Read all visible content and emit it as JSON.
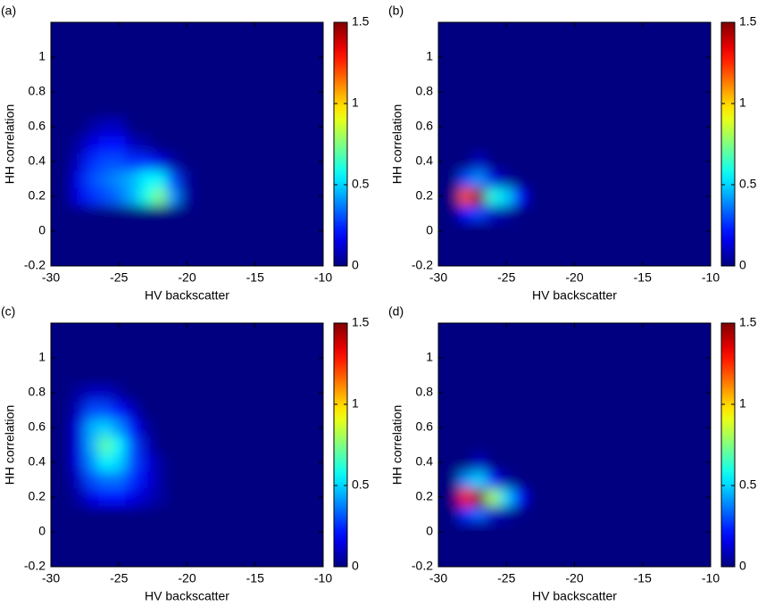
{
  "chart_data": [
    {
      "type": "contour",
      "label": "(a)",
      "xlabel": "HV backscatter",
      "ylabel": "HH correlation",
      "colormap": "jet",
      "x": [
        -30,
        -29,
        -28,
        -27,
        -26,
        -25,
        -24,
        -23,
        -22,
        -21,
        -20
      ],
      "y": [
        0.1,
        0.2,
        0.3,
        0.4,
        0.5,
        0.6,
        0.7,
        0.8
      ],
      "z": [
        [
          0,
          0,
          0,
          0,
          0,
          0,
          0,
          0,
          0,
          0,
          0
        ],
        [
          0,
          0,
          0.15,
          0.25,
          0.3,
          0.35,
          0.45,
          0.6,
          0.75,
          0.4,
          0.05
        ],
        [
          0,
          0,
          0.15,
          0.3,
          0.35,
          0.4,
          0.45,
          0.55,
          0.55,
          0.3,
          0.05
        ],
        [
          0,
          0,
          0.1,
          0.25,
          0.3,
          0.3,
          0.25,
          0.25,
          0.15,
          0.05,
          0
        ],
        [
          0,
          0,
          0.05,
          0.15,
          0.2,
          0.2,
          0.1,
          0.05,
          0,
          0,
          0
        ],
        [
          0,
          0,
          0,
          0.05,
          0.1,
          0.1,
          0,
          0,
          0,
          0,
          0
        ],
        [
          0,
          0,
          0,
          0,
          0,
          0,
          0,
          0,
          0,
          0,
          0
        ],
        [
          0,
          0,
          0,
          0,
          0,
          0,
          0,
          0,
          0,
          0,
          0
        ]
      ],
      "xlim": [
        -30,
        -10
      ],
      "ylim": [
        -0.2,
        1.2
      ],
      "xticks": [
        -30,
        -25,
        -20,
        -15,
        -10
      ],
      "yticks": [
        -0.2,
        0,
        0.2,
        0.4,
        0.6,
        0.8,
        1
      ],
      "clim": [
        0,
        1.5
      ],
      "cticks": [
        0,
        0.5,
        1,
        1.5
      ]
    },
    {
      "type": "contour",
      "label": "(b)",
      "xlabel": "HV backscatter",
      "ylabel": "HH correlation",
      "colormap": "jet",
      "x": [
        -30,
        -29,
        -28,
        -27,
        -26,
        -25,
        -24,
        -23,
        -22,
        -21,
        -20
      ],
      "y": [
        0.1,
        0.2,
        0.3,
        0.4,
        0.5,
        0.6,
        0.7,
        0.8
      ],
      "z": [
        [
          0,
          0,
          0.2,
          0.3,
          0.1,
          0.05,
          0,
          0,
          0,
          0,
          0
        ],
        [
          0,
          0,
          1.2,
          1.5,
          0.6,
          0.5,
          0.2,
          0,
          0,
          0,
          0
        ],
        [
          0,
          0,
          0.3,
          0.4,
          0.15,
          0.05,
          0,
          0,
          0,
          0,
          0
        ],
        [
          0,
          0,
          0,
          0.1,
          0,
          0,
          0,
          0,
          0,
          0,
          0
        ],
        [
          0,
          0,
          0,
          0,
          0,
          0,
          0,
          0,
          0,
          0,
          0
        ],
        [
          0,
          0,
          0,
          0,
          0,
          0,
          0,
          0,
          0,
          0,
          0
        ],
        [
          0,
          0,
          0,
          0,
          0,
          0,
          0,
          0,
          0,
          0,
          0
        ],
        [
          0,
          0,
          0,
          0,
          0,
          0,
          0,
          0,
          0,
          0,
          0
        ]
      ],
      "xlim": [
        -30,
        -10
      ],
      "ylim": [
        -0.2,
        1.2
      ],
      "xticks": [
        -30,
        -25,
        -20,
        -15,
        -10
      ],
      "yticks": [
        -0.2,
        0,
        0.2,
        0.4,
        0.6,
        0.8,
        1
      ],
      "clim": [
        0,
        1.5
      ],
      "cticks": [
        0,
        0.5,
        1,
        1.5
      ]
    },
    {
      "type": "contour",
      "label": "(c)",
      "xlabel": "HV backscatter",
      "ylabel": "HH correlation",
      "colormap": "jet",
      "x": [
        -30,
        -29,
        -28,
        -27,
        -26,
        -25,
        -24,
        -23,
        -22,
        -21,
        -20
      ],
      "y": [
        0.1,
        0.2,
        0.3,
        0.4,
        0.5,
        0.6,
        0.7,
        0.8
      ],
      "z": [
        [
          0,
          0,
          0,
          0,
          0,
          0,
          0,
          0,
          0,
          0,
          0
        ],
        [
          0,
          0,
          0.05,
          0.15,
          0.2,
          0.2,
          0.15,
          0.1,
          0.05,
          0,
          0
        ],
        [
          0,
          0,
          0.1,
          0.3,
          0.35,
          0.35,
          0.25,
          0.15,
          0.05,
          0,
          0
        ],
        [
          0,
          0,
          0.15,
          0.4,
          0.55,
          0.5,
          0.3,
          0.15,
          0.05,
          0,
          0
        ],
        [
          0,
          0,
          0.15,
          0.45,
          0.7,
          0.55,
          0.3,
          0.1,
          0,
          0,
          0
        ],
        [
          0,
          0,
          0.15,
          0.45,
          0.5,
          0.4,
          0.2,
          0.05,
          0,
          0,
          0
        ],
        [
          0,
          0,
          0.1,
          0.3,
          0.3,
          0.2,
          0.1,
          0,
          0,
          0,
          0
        ],
        [
          0,
          0,
          0.05,
          0.1,
          0.1,
          0.05,
          0,
          0,
          0,
          0,
          0
        ]
      ],
      "xlim": [
        -30,
        -10
      ],
      "ylim": [
        -0.2,
        1.2
      ],
      "xticks": [
        -30,
        -25,
        -20,
        -15,
        -10
      ],
      "yticks": [
        -0.2,
        0,
        0.2,
        0.4,
        0.6,
        0.8,
        1
      ],
      "clim": [
        0,
        1.5
      ],
      "cticks": [
        0,
        0.5,
        1,
        1.5
      ]
    },
    {
      "type": "contour",
      "label": "(d)",
      "xlabel": "HV backscatter",
      "ylabel": "HH correlation",
      "colormap": "jet",
      "x": [
        -30,
        -29,
        -28,
        -27,
        -26,
        -25,
        -24,
        -23,
        -22,
        -21,
        -20
      ],
      "y": [
        0.1,
        0.2,
        0.3,
        0.4,
        0.5,
        0.6,
        0.7,
        0.8
      ],
      "z": [
        [
          0,
          0,
          0.25,
          0.35,
          0.1,
          0.05,
          0,
          0,
          0,
          0,
          0
        ],
        [
          0,
          0,
          1.3,
          1.5,
          0.8,
          0.5,
          0.2,
          0,
          0,
          0,
          0
        ],
        [
          0,
          0,
          0.4,
          0.5,
          0.2,
          0.05,
          0,
          0,
          0,
          0,
          0
        ],
        [
          0,
          0,
          0,
          0.1,
          0,
          0,
          0,
          0,
          0,
          0,
          0
        ],
        [
          0,
          0,
          0,
          0,
          0,
          0,
          0,
          0,
          0,
          0,
          0
        ],
        [
          0,
          0,
          0,
          0,
          0,
          0,
          0,
          0,
          0,
          0,
          0
        ],
        [
          0,
          0,
          0,
          0,
          0,
          0,
          0,
          0,
          0,
          0,
          0
        ],
        [
          0,
          0,
          0,
          0,
          0,
          0,
          0,
          0,
          0,
          0,
          0
        ]
      ],
      "xlim": [
        -30,
        -10
      ],
      "ylim": [
        -0.2,
        1.2
      ],
      "xticks": [
        -30,
        -25,
        -20,
        -15,
        -10
      ],
      "yticks": [
        -0.2,
        0,
        0.2,
        0.4,
        0.6,
        0.8,
        1
      ],
      "clim": [
        0,
        1.5
      ],
      "cticks": [
        0,
        0.5,
        1,
        1.5
      ]
    }
  ]
}
